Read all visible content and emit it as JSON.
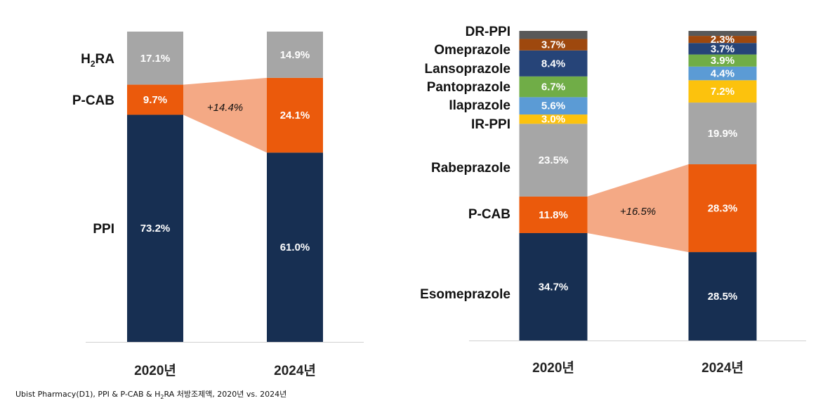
{
  "chart_data": [
    {
      "type": "bar",
      "stacked": true,
      "categories": [
        "2020년",
        "2024년"
      ],
      "series": [
        {
          "name": "PPI",
          "values": [
            73.2,
            61.0
          ],
          "labels": [
            "73.2%",
            "61.0%"
          ],
          "color": "#172f52",
          "label_color": "#111111"
        },
        {
          "name": "P-CAB",
          "values": [
            9.7,
            24.1
          ],
          "labels": [
            "9.7%",
            "24.1%"
          ],
          "color": "#eb5a0c",
          "label_color": "#eb5a0c"
        },
        {
          "name": "H2RA",
          "values": [
            17.1,
            14.9
          ],
          "labels": [
            "17.1%",
            "14.9%"
          ],
          "color": "#a6a6a6",
          "label_color": "#111111"
        }
      ],
      "highlight": {
        "series": "P-CAB",
        "label": "+14.4%",
        "color": "#f4a985"
      }
    },
    {
      "type": "bar",
      "stacked": true,
      "categories": [
        "2020년",
        "2024년"
      ],
      "series": [
        {
          "name": "Esomeprazole",
          "values": [
            34.7,
            28.5
          ],
          "labels": [
            "34.7%",
            "28.5%"
          ],
          "color": "#172f52",
          "label_color": "#111111"
        },
        {
          "name": "P-CAB",
          "values": [
            11.8,
            28.3
          ],
          "labels": [
            "11.8%",
            "28.3%"
          ],
          "color": "#eb5a0c",
          "label_color": "#eb5a0c"
        },
        {
          "name": "Rabeprazole",
          "values": [
            23.5,
            19.9
          ],
          "labels": [
            "23.5%",
            "19.9%"
          ],
          "color": "#a6a6a6",
          "label_color": "#111111"
        },
        {
          "name": "IR-PPI",
          "values": [
            3.0,
            7.2
          ],
          "labels": [
            "3.0%",
            "7.2%"
          ],
          "color": "#fcc20d",
          "label_color": "#111111"
        },
        {
          "name": "Ilaprazole",
          "values": [
            5.6,
            4.4
          ],
          "labels": [
            "5.6%",
            "4.4%"
          ],
          "color": "#5b9bd5",
          "label_color": "#111111"
        },
        {
          "name": "Pantoprazole",
          "values": [
            6.7,
            3.9
          ],
          "labels": [
            "6.7%",
            "3.9%"
          ],
          "color": "#70ad47",
          "label_color": "#111111"
        },
        {
          "name": "Lansoprazole",
          "values": [
            8.4,
            3.7
          ],
          "labels": [
            "8.4%",
            "3.7%"
          ],
          "color": "#264478",
          "label_color": "#111111"
        },
        {
          "name": "Omeprazole",
          "values": [
            3.7,
            2.3
          ],
          "labels": [
            "3.7%",
            "2.3%"
          ],
          "color": "#9e480e",
          "label_color": "#111111"
        },
        {
          "name": "DR-PPI",
          "values": [
            2.6,
            1.6
          ],
          "labels": [
            "",
            ""
          ],
          "color": "#595959",
          "label_color": "#111111"
        }
      ],
      "highlight": {
        "series": "P-CAB",
        "label": "+16.5%",
        "color": "#f4a985"
      }
    }
  ],
  "footer": {
    "before": "Ubist Pharmacy(D1), PPI & P-CAB & H",
    "sub": "2",
    "after": "RA 처방조제액, 2020년 vs. 2024년"
  }
}
